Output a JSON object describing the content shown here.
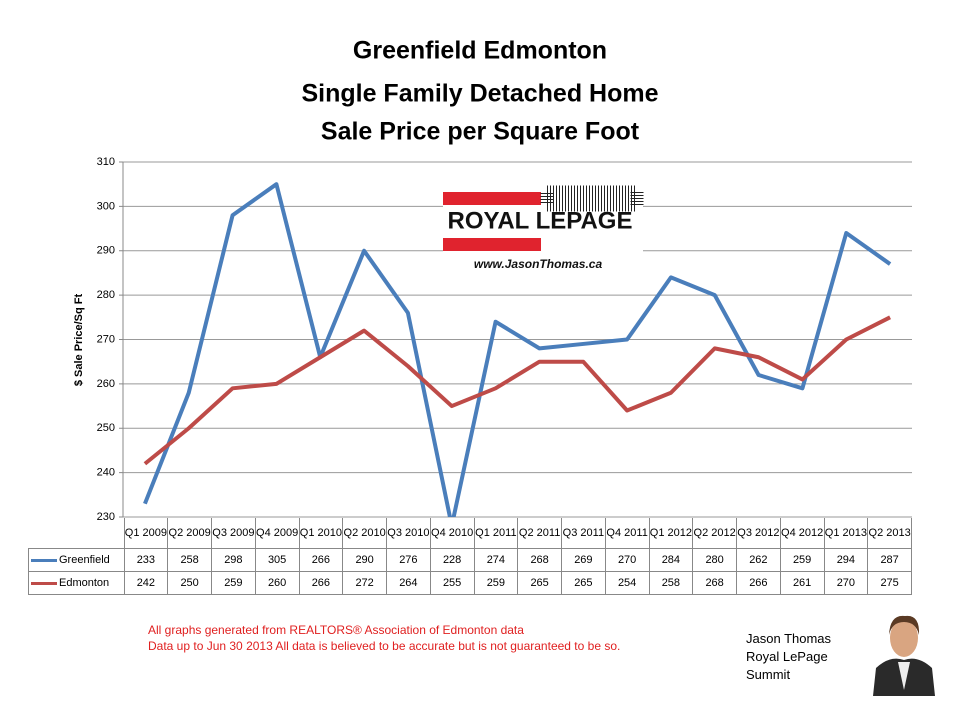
{
  "chart_data": {
    "type": "line",
    "title": [
      "Greenfield Edmonton",
      "Single Family Detached Home",
      "Sale Price per Square Foot"
    ],
    "y_label": "$ Sale Price/Sq Ft",
    "categories": [
      "Q1 2009",
      "Q2 2009",
      "Q3 2009",
      "Q4 2009",
      "Q1 2010",
      "Q2 2010",
      "Q3 2010",
      "Q4 2010",
      "Q1 2011",
      "Q2 2011",
      "Q3 2011",
      "Q4 2011",
      "Q1 2012",
      "Q2 2012",
      "Q3 2012",
      "Q4 2012",
      "Q1 2013",
      "Q2 2013"
    ],
    "series": [
      {
        "name": "Greenfield",
        "color": "#4a7ebb",
        "values": [
          233,
          258,
          298,
          305,
          266,
          290,
          276,
          228,
          274,
          268,
          269,
          270,
          284,
          280,
          262,
          259,
          294,
          287
        ]
      },
      {
        "name": "Edmonton",
        "color": "#be4b48",
        "values": [
          242,
          250,
          259,
          260,
          266,
          272,
          264,
          255,
          259,
          265,
          265,
          254,
          258,
          268,
          266,
          261,
          270,
          275
        ]
      }
    ],
    "ylim": [
      230,
      310
    ],
    "yticks": [
      230,
      240,
      250,
      260,
      270,
      280,
      290,
      300,
      310
    ],
    "grid": true
  },
  "logo": {
    "brand": "ROYAL LEPAGE",
    "url": "www.JasonThomas.ca"
  },
  "notes": [
    "All graphs generated from REALTORS® Association of Edmonton data",
    "Data up to  Jun 30 2013  All data is believed to be accurate but is not guaranteed to be so."
  ],
  "agent": [
    "Jason Thomas",
    "Royal LePage",
    "Summit"
  ]
}
